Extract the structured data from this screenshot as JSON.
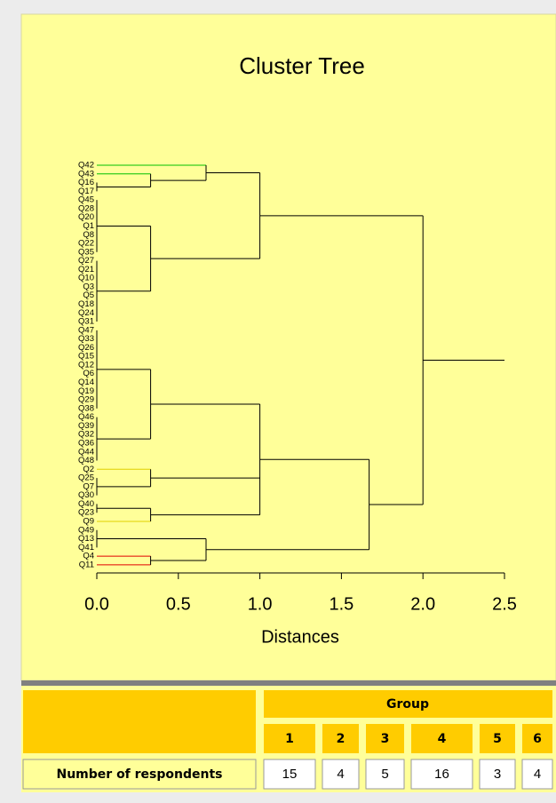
{
  "chart_data": {
    "type": "dendrogram",
    "title": "Cluster Tree",
    "x_label": "Distances",
    "xlim": [
      0,
      2.5
    ],
    "xticks": [
      {
        "value": 0,
        "label": "0.0"
      },
      0.5,
      {
        "value": 1,
        "label": "1.0"
      },
      1.5,
      {
        "value": 2,
        "label": "2.0"
      },
      2.5
    ],
    "line_color": "#000000",
    "leaves": [
      {
        "name": "Q42",
        "color": "#00c000"
      },
      {
        "name": "Q43",
        "color": "#00c000"
      },
      {
        "name": "Q16"
      },
      {
        "name": "Q17"
      },
      {
        "name": "Q45"
      },
      {
        "name": "Q28"
      },
      {
        "name": "Q20"
      },
      {
        "name": "Q1"
      },
      {
        "name": "Q8"
      },
      {
        "name": "Q22"
      },
      {
        "name": "Q35"
      },
      {
        "name": "Q27"
      },
      {
        "name": "Q21"
      },
      {
        "name": "Q10"
      },
      {
        "name": "Q3"
      },
      {
        "name": "Q5"
      },
      {
        "name": "Q18"
      },
      {
        "name": "Q24"
      },
      {
        "name": "Q31"
      },
      {
        "name": "Q47"
      },
      {
        "name": "Q33"
      },
      {
        "name": "Q26"
      },
      {
        "name": "Q15"
      },
      {
        "name": "Q12"
      },
      {
        "name": "Q6"
      },
      {
        "name": "Q14"
      },
      {
        "name": "Q19"
      },
      {
        "name": "Q29"
      },
      {
        "name": "Q38"
      },
      {
        "name": "Q46"
      },
      {
        "name": "Q39"
      },
      {
        "name": "Q32"
      },
      {
        "name": "Q36"
      },
      {
        "name": "Q44"
      },
      {
        "name": "Q48"
      },
      {
        "name": "Q2",
        "color": "#e0d000"
      },
      {
        "name": "Q25"
      },
      {
        "name": "Q7"
      },
      {
        "name": "Q30"
      },
      {
        "name": "Q40"
      },
      {
        "name": "Q23"
      },
      {
        "name": "Q9",
        "color": "#e0d000"
      },
      {
        "name": "Q49"
      },
      {
        "name": "Q13"
      },
      {
        "name": "Q41"
      },
      {
        "name": "Q4",
        "color": "#e00000"
      },
      {
        "name": "Q11",
        "color": "#e00000"
      }
    ],
    "nodes": [
      {
        "height": 0,
        "children": [
          {
            "leaf": 2
          },
          {
            "leaf": 3
          }
        ]
      },
      {
        "height": 0.33,
        "children": [
          {
            "leaf": 1
          },
          {
            "node": 0
          }
        ]
      },
      {
        "height": 0.67,
        "children": [
          {
            "leaf": 0
          },
          {
            "node": 1
          }
        ]
      },
      {
        "height": 0,
        "children": [
          {
            "leaf": 4
          },
          {
            "leaf": 5
          },
          {
            "leaf": 6
          },
          {
            "leaf": 7
          },
          {
            "leaf": 8
          },
          {
            "leaf": 9
          },
          {
            "leaf": 10
          }
        ]
      },
      {
        "height": 0,
        "children": [
          {
            "leaf": 11
          },
          {
            "leaf": 12
          },
          {
            "leaf": 13
          },
          {
            "leaf": 14
          },
          {
            "leaf": 15
          },
          {
            "leaf": 16
          },
          {
            "leaf": 17
          },
          {
            "leaf": 18
          }
        ]
      },
      {
        "height": 0.33,
        "children": [
          {
            "node": 3
          },
          {
            "node": 4
          }
        ]
      },
      {
        "height": 1,
        "children": [
          {
            "node": 2
          },
          {
            "node": 5
          }
        ]
      },
      {
        "height": 0,
        "children": [
          {
            "leaf": 19
          },
          {
            "leaf": 20
          },
          {
            "leaf": 21
          },
          {
            "leaf": 22
          },
          {
            "leaf": 23
          },
          {
            "leaf": 24
          },
          {
            "leaf": 25
          },
          {
            "leaf": 26
          },
          {
            "leaf": 27
          },
          {
            "leaf": 28
          }
        ]
      },
      {
        "height": 0,
        "children": [
          {
            "leaf": 29
          },
          {
            "leaf": 30
          },
          {
            "leaf": 31
          },
          {
            "leaf": 32
          },
          {
            "leaf": 33
          },
          {
            "leaf": 34
          }
        ]
      },
      {
        "height": 0.33,
        "children": [
          {
            "node": 7
          },
          {
            "node": 8
          }
        ]
      },
      {
        "height": 0,
        "children": [
          {
            "leaf": 36
          },
          {
            "leaf": 37
          },
          {
            "leaf": 38
          }
        ]
      },
      {
        "height": 0.33,
        "children": [
          {
            "leaf": 35
          },
          {
            "node": 10
          }
        ]
      },
      {
        "height": 0,
        "children": [
          {
            "leaf": 39
          },
          {
            "leaf": 40
          }
        ]
      },
      {
        "height": 0.33,
        "children": [
          {
            "node": 12
          },
          {
            "leaf": 41
          }
        ]
      },
      {
        "height": 1,
        "children": [
          {
            "node": 9
          },
          {
            "node": 11
          },
          {
            "node": 13
          }
        ]
      },
      {
        "height": 0,
        "children": [
          {
            "leaf": 42
          },
          {
            "leaf": 43
          },
          {
            "leaf": 44
          }
        ]
      },
      {
        "height": 0.33,
        "children": [
          {
            "leaf": 45
          },
          {
            "leaf": 46
          }
        ]
      },
      {
        "height": 0.67,
        "children": [
          {
            "node": 15
          },
          {
            "node": 16
          }
        ]
      },
      {
        "height": 1.67,
        "children": [
          {
            "node": 14
          },
          {
            "node": 17
          }
        ]
      },
      {
        "height": 2,
        "children": [
          {
            "node": 6
          },
          {
            "node": 18
          }
        ]
      }
    ]
  },
  "table": {
    "header": "Group",
    "groups": [
      1,
      2,
      3,
      4,
      5,
      6
    ],
    "row_label": "Number of respondents",
    "values": [
      15,
      4,
      5,
      16,
      3,
      4
    ]
  }
}
